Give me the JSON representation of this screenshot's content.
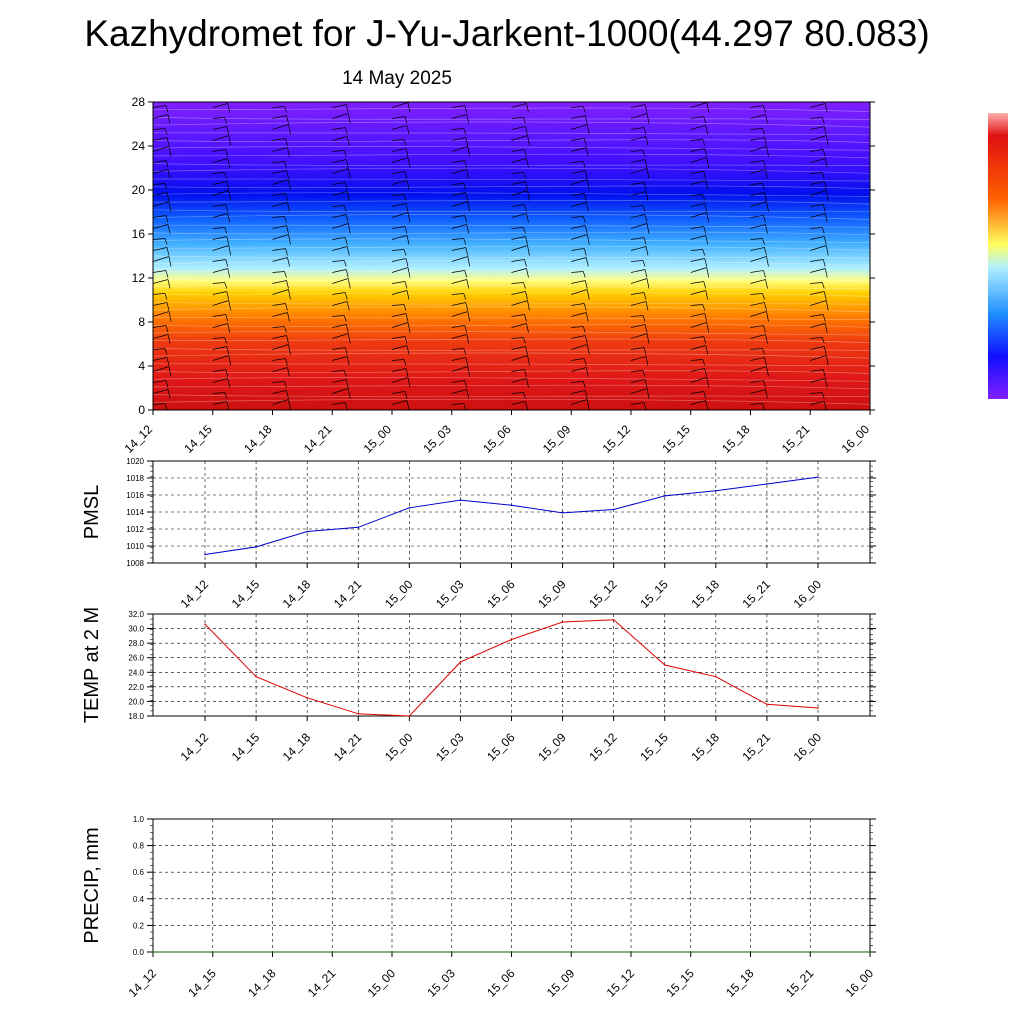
{
  "title": "Kazhydromet for J-Yu-Jarkent-1000(44.297 80.083)",
  "subtitle": "14 May 2025",
  "colors": {
    "pmsl_line": "#0000cc",
    "temp_line": "#e00000",
    "precip_line": "#006400",
    "gradient": [
      "#e00000",
      "#ff7000",
      "#ffd000",
      "#ffff70",
      "#a0e8ff",
      "#30a0ff",
      "#1010ff",
      "#7f20ff"
    ]
  },
  "chart_data": [
    {
      "type": "heatmap",
      "name": "cross-section",
      "x_ticks": [
        "14_12",
        "14_15",
        "14_18",
        "14_21",
        "15_00",
        "15_03",
        "15_06",
        "15_09",
        "15_12",
        "15_15",
        "15_18",
        "15_21",
        "16_00"
      ],
      "y_ticks": [
        "0",
        "4",
        "8",
        "12",
        "16",
        "20",
        "24",
        "28"
      ],
      "ylim": [
        0,
        28
      ],
      "wind_barbs": true,
      "colorbar": true
    },
    {
      "type": "line",
      "ylabel": "PMSL",
      "ylim": [
        1008,
        1020
      ],
      "y_ticks": [
        "1008",
        "1010",
        "1012",
        "1014",
        "1016",
        "1018",
        "1020"
      ],
      "x_ticks": [
        "14_12",
        "14_15",
        "14_18",
        "14_21",
        "15_00",
        "15_03",
        "15_06",
        "15_09",
        "15_12",
        "15_15",
        "15_18",
        "15_21",
        "16_00"
      ],
      "values": [
        1009.0,
        1009.9,
        1011.7,
        1012.2,
        1014.5,
        1015.4,
        1014.8,
        1013.9,
        1014.3,
        1015.9,
        1016.5,
        1017.3,
        1018.1
      ],
      "grid": true
    },
    {
      "type": "line",
      "ylabel": "TEMP at 2 M",
      "ylim": [
        18,
        32
      ],
      "y_ticks": [
        "18.0",
        "20.0",
        "22.0",
        "24.0",
        "26.0",
        "28.0",
        "30.0",
        "32.0"
      ],
      "x_ticks": [
        "14_12",
        "14_15",
        "14_18",
        "14_21",
        "15_00",
        "15_03",
        "15_06",
        "15_09",
        "15_12",
        "15_15",
        "15_18",
        "15_21",
        "16_00"
      ],
      "values": [
        30.6,
        23.4,
        20.5,
        18.3,
        18.0,
        25.4,
        28.5,
        30.9,
        31.2,
        25.0,
        23.4,
        19.6,
        19.1
      ],
      "grid": true
    },
    {
      "type": "line",
      "ylabel": "PRECIP, mm",
      "ylim": [
        0.0,
        1.0
      ],
      "y_ticks": [
        "0.0",
        "0.2",
        "0.4",
        "0.6",
        "0.8",
        "1.0"
      ],
      "x_ticks": [
        "14_12",
        "14_15",
        "14_18",
        "14_21",
        "15_00",
        "15_03",
        "15_06",
        "15_09",
        "15_12",
        "15_15",
        "15_18",
        "15_21",
        "16_00"
      ],
      "values": [
        0,
        0,
        0,
        0,
        0,
        0,
        0,
        0,
        0,
        0,
        0,
        0,
        0
      ],
      "grid": true
    }
  ]
}
